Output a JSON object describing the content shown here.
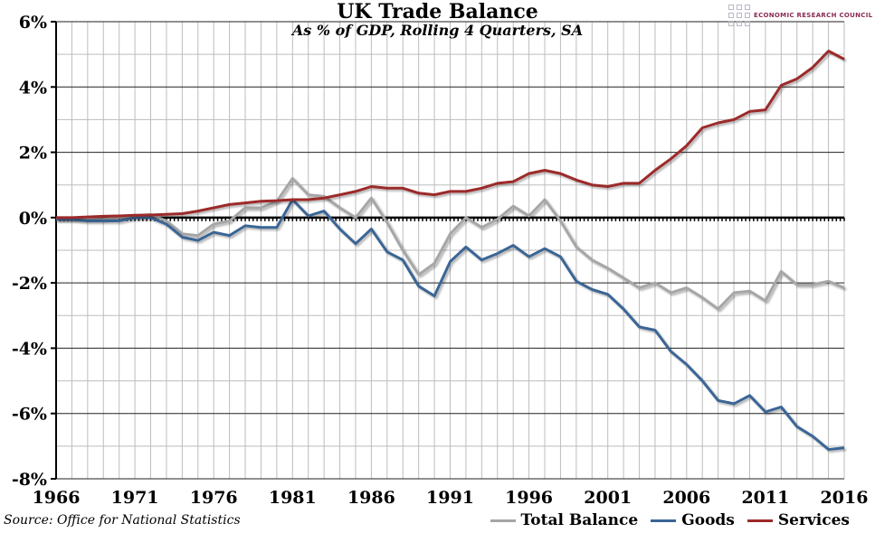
{
  "chart_data": {
    "type": "line",
    "title": "UK Trade Balance",
    "subtitle": "As % of GDP, Rolling 4 Quarters, SA",
    "source": "Source: Office for National Statistics",
    "logo_text": "ECONOMIC RESEARCH COUNCIL",
    "xlim": [
      1966,
      2016
    ],
    "ylim": [
      -8,
      6
    ],
    "x_ticks": [
      "1966",
      "1971",
      "1976",
      "1981",
      "1986",
      "1991",
      "1996",
      "2001",
      "2006",
      "2011",
      "2016"
    ],
    "y_ticks": [
      "-8%",
      "-6%",
      "-4%",
      "-2%",
      "0%",
      "2%",
      "4%",
      "6%"
    ],
    "grid": true,
    "legend": "bottom-right",
    "x": [
      1966,
      1967,
      1968,
      1969,
      1970,
      1971,
      1972,
      1973,
      1974,
      1975,
      1976,
      1977,
      1978,
      1979,
      1980,
      1981,
      1982,
      1983,
      1984,
      1985,
      1986,
      1987,
      1988,
      1989,
      1990,
      1991,
      1992,
      1993,
      1994,
      1995,
      1996,
      1997,
      1998,
      1999,
      2000,
      2001,
      2002,
      2003,
      2004,
      2005,
      2006,
      2007,
      2008,
      2009,
      2010,
      2011,
      2012,
      2013,
      2014,
      2015,
      2016
    ],
    "series": [
      {
        "name": "Total Balance",
        "color": "#a6a6a6",
        "values": [
          -0.05,
          -0.05,
          -0.05,
          -0.05,
          0,
          0.05,
          0.1,
          -0.1,
          -0.5,
          -0.55,
          -0.2,
          -0.1,
          0.3,
          0.3,
          0.5,
          1.2,
          0.7,
          0.65,
          0.3,
          0.0,
          0.6,
          -0.15,
          -1.0,
          -1.75,
          -1.4,
          -0.5,
          0.0,
          -0.3,
          -0.05,
          0.35,
          0.05,
          0.55,
          -0.1,
          -0.9,
          -1.3,
          -1.55,
          -1.85,
          -2.15,
          -2.0,
          -2.3,
          -2.15,
          -2.45,
          -2.8,
          -2.3,
          -2.25,
          -2.55,
          -1.65,
          -2.05,
          -2.05,
          -1.95,
          -2.15
        ]
      },
      {
        "name": "Goods",
        "color": "#3a6595",
        "values": [
          -0.05,
          -0.05,
          -0.1,
          -0.1,
          -0.1,
          0,
          0,
          -0.2,
          -0.6,
          -0.7,
          -0.45,
          -0.55,
          -0.25,
          -0.3,
          -0.3,
          0.55,
          0.05,
          0.2,
          -0.35,
          -0.8,
          -0.35,
          -1.05,
          -1.3,
          -2.1,
          -2.4,
          -1.35,
          -0.9,
          -1.3,
          -1.1,
          -0.85,
          -1.2,
          -0.95,
          -1.2,
          -1.95,
          -2.2,
          -2.35,
          -2.8,
          -3.35,
          -3.45,
          -4.1,
          -4.5,
          -5.0,
          -5.6,
          -5.7,
          -5.45,
          -5.95,
          -5.8,
          -6.4,
          -6.7,
          -7.1,
          -7.05
        ]
      },
      {
        "name": "Services",
        "color": "#9c2a2a",
        "values": [
          0,
          0,
          0.02,
          0.04,
          0.05,
          0.07,
          0.08,
          0.1,
          0.12,
          0.2,
          0.3,
          0.4,
          0.45,
          0.5,
          0.52,
          0.55,
          0.55,
          0.6,
          0.7,
          0.8,
          0.95,
          0.9,
          0.9,
          0.75,
          0.7,
          0.8,
          0.8,
          0.9,
          1.05,
          1.1,
          1.35,
          1.45,
          1.35,
          1.15,
          1.0,
          0.95,
          1.05,
          1.05,
          1.45,
          1.8,
          2.2,
          2.75,
          2.9,
          3.0,
          3.25,
          3.3,
          4.05,
          4.25,
          4.6,
          5.1,
          4.85
        ]
      }
    ]
  }
}
